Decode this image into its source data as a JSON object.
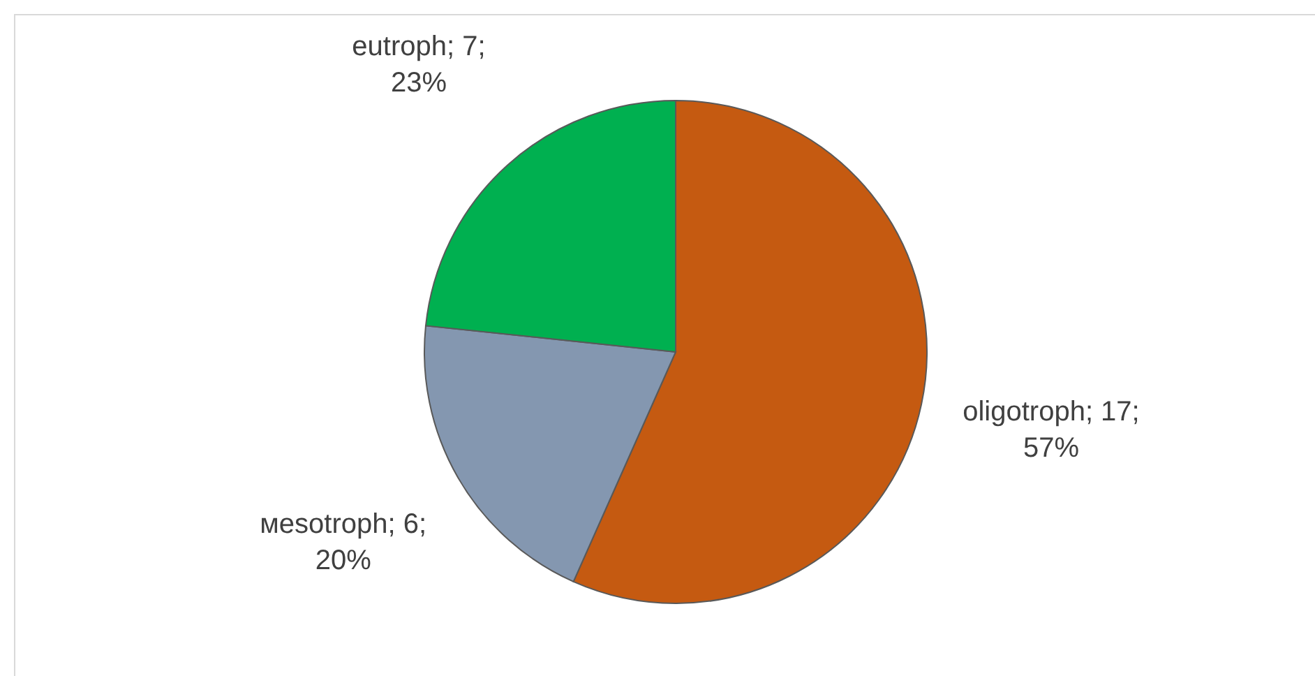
{
  "chart_data": {
    "type": "pie",
    "categories": [
      "oligotroph",
      "мesotroph",
      "eutroph"
    ],
    "values": [
      17,
      6,
      7
    ],
    "colors": [
      "#c55a11",
      "#8497b0",
      "#00b050"
    ],
    "value_labels": [
      "; 17; 57%",
      "; 6; 20%",
      "; 7; 23%"
    ]
  }
}
